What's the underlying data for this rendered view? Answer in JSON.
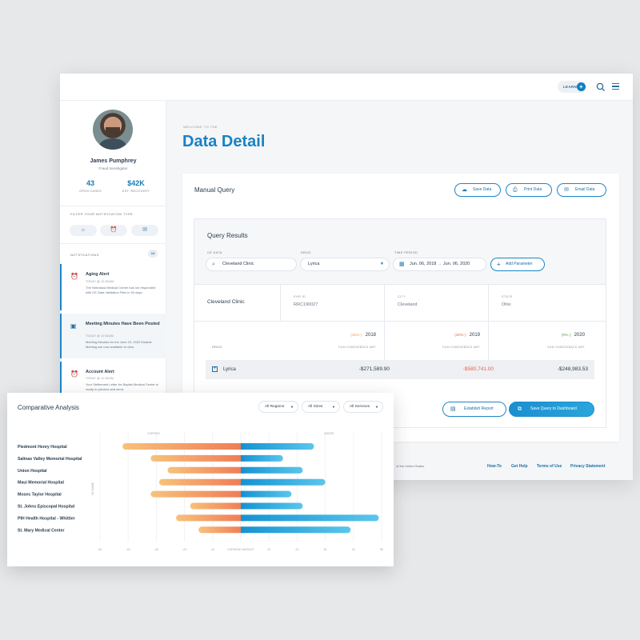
{
  "topbar": {
    "learn_label": "LEARN",
    "learn_plus": "+"
  },
  "user": {
    "name": "James Pumphrey",
    "role": "Fraud Investigator"
  },
  "stats": [
    {
      "value": "43",
      "label": "OPEN CASES"
    },
    {
      "value": "$42K",
      "label": "EST. RECOVERY"
    }
  ],
  "filter": {
    "title": "FILTER YOUR NOTIFICATION TYPE",
    "chips": [
      "bulb-icon",
      "alarm-icon",
      "mail-icon"
    ]
  },
  "notifications": {
    "title": "NOTIFICATIONS",
    "count": "14",
    "items": [
      {
        "icon": "alarm-icon",
        "title": "Aging Alert",
        "date": "TODAY @ 10:52AM",
        "body": "The Nebraska Medical Center has not responded with CE Data Validation Files in 53 days."
      },
      {
        "icon": "inbox-icon",
        "title": "Meeting Minutes Have Been Posted",
        "date": "TODAY @ 10:52AM",
        "body": "Meeting Minutes for the June 23, 2020 Estable Meeting are now available to view."
      },
      {
        "icon": "alarm-icon",
        "title": "Account Alert",
        "date": "TODAY @ 10:52AM",
        "body": "Your Settlement Letter for Baptist Medical Center is ready to preview and send."
      }
    ]
  },
  "page": {
    "welcome": "WELCOME TO THE",
    "title": "Data Detail"
  },
  "manual_query": {
    "title": "Manual Query",
    "buttons": [
      "Save Data",
      "Print Data",
      "Email Data"
    ]
  },
  "query_results": {
    "title": "Query Results",
    "fields": {
      "ce_label": "CE DATA",
      "ce_value": "Cleveland Clinic",
      "drug_label": "DRUG",
      "drug_value": "Lyrica",
      "time_label": "TIME PERIOD",
      "time_from": "Jun. 06, 2018",
      "time_arrow": "→",
      "time_to": "Jun. 06, 2020",
      "add_param": "Add Parameter"
    },
    "info": {
      "name": "Cleveland Clinic",
      "ehr_label": "EHR ID",
      "ehr_value": "RRC190027",
      "city_label": "CITY",
      "city_value": "Cleveland",
      "state_label": "STATE",
      "state_value": "Ohio"
    },
    "years": [
      {
        "change": "(15%↑)",
        "change_color": "#f0a040",
        "year": "2018",
        "sub": "SUM CHARGEBACK AMT"
      },
      {
        "change": "(32%↑)",
        "change_color": "#e8604c",
        "year": "2019",
        "sub": "SUM CHARGEBACK AMT"
      },
      {
        "change": "(9%↓)",
        "change_color": "#4aaa46",
        "year": "2020",
        "sub": "SUM CHARGEBACK AMT"
      }
    ],
    "drug_label": "DRUG",
    "row": {
      "name": "Lyrica",
      "values": [
        "-$271,589.90",
        "-$580,741.00",
        "-$248,983.53"
      ]
    },
    "establish_label": "Establish Report",
    "save_dashboard_label": "Save Query to Dashboard"
  },
  "footer": {
    "copyright": "of the United States.",
    "links": [
      "How-To",
      "Get Help",
      "Terms of Use",
      "Privacy Statement"
    ]
  },
  "analysis": {
    "title": "Comparative Analysis",
    "filters": [
      "All Regions",
      "All Sizes",
      "All Services"
    ],
    "top_left_label": "OVERPAY",
    "top_right_label": "UNDER",
    "y_axis_label": "CE NAME",
    "center_tick_label": "OVERAGE AMOUNT",
    "colors": {
      "negative": "#f08a5c",
      "positive": "#1a9fd6"
    }
  },
  "chart_data": {
    "type": "bar",
    "title": "Comparative Analysis",
    "categories": [
      "Piedmont Henry Hospital",
      "Salinas Valley Memorial Hospital",
      "Union Hospital",
      "Maui Memorial Hospital",
      "Moses Taylor Hospital",
      "St. Johns Episcopal Hospital",
      "PIH Health Hospital - Whittier",
      "St. Mary Medical Center"
    ],
    "series": [
      {
        "name": "Overpay",
        "values": [
          -4.2,
          -3.2,
          -2.6,
          -2.9,
          -3.2,
          -1.8,
          -2.3,
          -1.5
        ]
      },
      {
        "name": "Under",
        "values": [
          2.6,
          1.5,
          2.2,
          3.0,
          1.8,
          2.2,
          4.9,
          3.9
        ]
      }
    ],
    "xlim": [
      -5,
      5
    ],
    "xticks": [
      "-5K",
      "-4K",
      "-3K",
      "-2K",
      "-1K",
      "",
      "1K",
      "2K",
      "3K",
      "4K",
      "5K"
    ],
    "grid": true
  }
}
